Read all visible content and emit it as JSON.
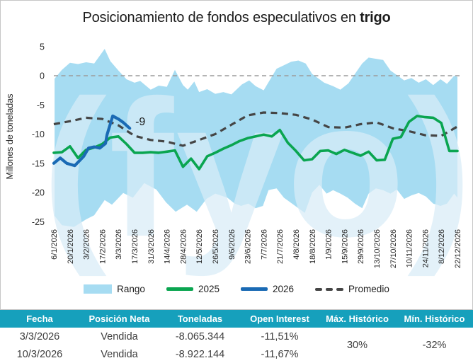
{
  "title": {
    "prefix": "Posicionamiento de fondos especulativos en ",
    "bold": "trigo"
  },
  "watermark": "(fyo)",
  "colors": {
    "range_band": "#a6dcf2",
    "line_2025": "#0aa550",
    "line_2026": "#1a6ab4",
    "promedio": "#454545",
    "zero_line": "#9b9b9b",
    "table_header_bg": "#16a0bc",
    "table_header_text": "#ffffff",
    "watermark": "#d9edf8"
  },
  "chart_data": {
    "type": "area+line",
    "title": "Posicionamiento de fondos especulativos en trigo",
    "xlabel": "",
    "ylabel": "Millones de toneladas",
    "ylim": [
      -25,
      5
    ],
    "y_ticks": [
      5,
      0,
      -5,
      -10,
      -15,
      -20,
      -25
    ],
    "grid": "zero-line-only",
    "legend_position": "bottom",
    "x_labels": [
      "6/1/2026",
      "20/1/2026",
      "3/2/2026",
      "17/2/2026",
      "3/3/2026",
      "17/3/2026",
      "31/3/2026",
      "14/4/2026",
      "28/4/2026",
      "12/5/2026",
      "26/5/2026",
      "9/6/2026",
      "23/6/2026",
      "7/7/2026",
      "21/7/2026",
      "4/8/2026",
      "18/8/2026",
      "1/9/2026",
      "15/9/2026",
      "29/9/2026",
      "13/10/2026",
      "27/10/2026",
      "10/11/2026",
      "24/11/2026",
      "8/12/2026",
      "22/12/2026"
    ],
    "weeks_per_label": 2,
    "annotation": {
      "text": "-9",
      "week": 10.1,
      "value": -8.5
    },
    "series": {
      "range_upper": [
        [
          0.1,
          -0.5
        ],
        [
          1,
          1.0
        ],
        [
          2,
          2.2
        ],
        [
          3,
          2.0
        ],
        [
          4,
          2.3
        ],
        [
          5,
          2.1
        ],
        [
          6.3,
          4.6
        ],
        [
          7,
          2.5
        ],
        [
          8,
          0.9
        ],
        [
          9,
          -0.6
        ],
        [
          10,
          -1.2
        ],
        [
          10.7,
          -0.9
        ],
        [
          12,
          -2.4
        ],
        [
          13,
          -1.7
        ],
        [
          14,
          -1.9
        ],
        [
          15,
          1.0
        ],
        [
          16,
          -1.6
        ],
        [
          16.6,
          -2.4
        ],
        [
          17.4,
          -1.0
        ],
        [
          18,
          -2.8
        ],
        [
          19,
          -2.3
        ],
        [
          20,
          -3.1
        ],
        [
          21,
          -2.8
        ],
        [
          22,
          -3.2
        ],
        [
          23.3,
          -1.5
        ],
        [
          24.2,
          -0.8
        ],
        [
          25,
          -1.8
        ],
        [
          26,
          -2.5
        ],
        [
          27.6,
          1.2
        ],
        [
          28.5,
          1.8
        ],
        [
          29.4,
          2.4
        ],
        [
          30.3,
          2.6
        ],
        [
          31.2,
          2.1
        ],
        [
          32,
          0.3
        ],
        [
          33.5,
          -1.2
        ],
        [
          34.6,
          -1.8
        ],
        [
          35.5,
          -2.4
        ],
        [
          36.5,
          -1.3
        ],
        [
          38.2,
          2.1
        ],
        [
          39,
          3.1
        ],
        [
          40.8,
          2.7
        ],
        [
          41.7,
          0.9
        ],
        [
          43.4,
          -0.8
        ],
        [
          44.3,
          -0.4
        ],
        [
          45.2,
          -1.2
        ],
        [
          46.1,
          -0.6
        ],
        [
          47,
          -1.6
        ],
        [
          47.9,
          -0.6
        ],
        [
          48.7,
          -1.4
        ],
        [
          49.6,
          0.0
        ],
        [
          50,
          -0.2
        ]
      ],
      "range_lower": [
        [
          0.1,
          -24.0
        ],
        [
          1,
          -25.6
        ],
        [
          2.5,
          -25.9
        ],
        [
          4,
          -24.6
        ],
        [
          5,
          -23.9
        ],
        [
          6.3,
          -21.3
        ],
        [
          7.2,
          -22.1
        ],
        [
          8.6,
          -20.1
        ],
        [
          9.8,
          -20.9
        ],
        [
          11.2,
          -18.4
        ],
        [
          12.7,
          -19.5
        ],
        [
          13.9,
          -21.7
        ],
        [
          15.1,
          -23.3
        ],
        [
          16.5,
          -22.1
        ],
        [
          17.7,
          -23.3
        ],
        [
          18.9,
          -21.1
        ],
        [
          20,
          -20.2
        ],
        [
          21.5,
          -20.9
        ],
        [
          22.4,
          -21.9
        ],
        [
          23.2,
          -22.3
        ],
        [
          24.1,
          -21.9
        ],
        [
          25,
          -22.7
        ],
        [
          25.9,
          -22.3
        ],
        [
          26.6,
          -19.6
        ],
        [
          27.6,
          -19.3
        ],
        [
          28.5,
          -20.9
        ],
        [
          30.3,
          -22.7
        ],
        [
          31.1,
          -23.5
        ],
        [
          32,
          -20.0
        ],
        [
          32.9,
          -18.7
        ],
        [
          33.8,
          -20.2
        ],
        [
          34.6,
          -19.6
        ],
        [
          35.5,
          -20.2
        ],
        [
          36.4,
          -20.9
        ],
        [
          37.3,
          -21.9
        ],
        [
          38.2,
          -22.7
        ],
        [
          39,
          -20.2
        ],
        [
          39.9,
          -19.3
        ],
        [
          40.8,
          -19.6
        ],
        [
          41.7,
          -20.2
        ],
        [
          42.5,
          -19.5
        ],
        [
          43.4,
          -21.1
        ],
        [
          44.3,
          -20.5
        ],
        [
          45.2,
          -20.1
        ],
        [
          46.1,
          -20.7
        ],
        [
          47,
          -21.9
        ],
        [
          47.9,
          -22.3
        ],
        [
          48.7,
          -21.9
        ],
        [
          49.6,
          -20.2
        ],
        [
          50,
          -20.9
        ]
      ],
      "y2025_weekly": [
        -13.2,
        -13.1,
        -12.1,
        -14.1,
        -12.7,
        -12.3,
        -11.7,
        -10.6,
        -10.4,
        -11.7,
        -13.2,
        -13.2,
        -13.1,
        -13.2,
        -13.0,
        -12.8,
        -15.6,
        -14.2,
        -16.0,
        -13.8,
        -13.2,
        -12.5,
        -11.9,
        -11.2,
        -10.7,
        -10.4,
        -10.1,
        -10.4,
        -9.3,
        -11.5,
        -12.9,
        -14.5,
        -14.3,
        -12.9,
        -12.8,
        -13.4,
        -12.7,
        -13.2,
        -13.7,
        -13.0,
        -14.5,
        -14.4,
        -10.8,
        -10.5,
        -7.9,
        -6.9,
        -7.1,
        -7.2,
        -8.1,
        -12.9,
        -12.9
      ],
      "y2026": [
        [
          0,
          -15.0
        ],
        [
          0.8,
          -14.1
        ],
        [
          1.6,
          -15.0
        ],
        [
          2.6,
          -15.4
        ],
        [
          3.7,
          -13.8
        ],
        [
          4.3,
          -12.4
        ],
        [
          5.0,
          -12.2
        ],
        [
          5.7,
          -12.4
        ],
        [
          6.4,
          -11.6
        ],
        [
          6.6,
          -10.1
        ],
        [
          7.3,
          -6.9
        ],
        [
          8.1,
          -7.5
        ],
        [
          8.6,
          -8.0
        ],
        [
          9.4,
          -9.0
        ]
      ],
      "promedio_biweekly": [
        -8.3,
        -7.8,
        -7.2,
        -7.4,
        -8.5,
        -10.3,
        -11.0,
        -11.3,
        -12.0,
        -11.0,
        -10.0,
        -8.4,
        -6.8,
        -6.3,
        -6.4,
        -6.7,
        -7.5,
        -8.8,
        -8.9,
        -8.3,
        -8.0,
        -9.0,
        -9.5,
        -10.2,
        -10.3,
        -8.7
      ]
    }
  },
  "legend": [
    {
      "label": "Rango",
      "type": "area",
      "color": "#a6dcf2"
    },
    {
      "label": "2025",
      "type": "line",
      "color": "#0aa550"
    },
    {
      "label": "2026",
      "type": "line",
      "color": "#1a6ab4"
    },
    {
      "label": "Promedio",
      "type": "dashed",
      "color": "#454545"
    }
  ],
  "table": {
    "headers": [
      "Fecha",
      "Posición Neta",
      "Toneladas",
      "Open Interest",
      "Máx. Histórico",
      "Mín. Histórico"
    ],
    "rows": [
      {
        "fecha": "3/3/2026",
        "posicion_neta": "Vendida",
        "toneladas": "-8.065.344",
        "open_interest": "-11,51%"
      },
      {
        "fecha": "10/3/2026",
        "posicion_neta": "Vendida",
        "toneladas": "-8.922.144",
        "open_interest": "-11,67%"
      }
    ],
    "max_historico": "30%",
    "min_historico": "-32%"
  }
}
